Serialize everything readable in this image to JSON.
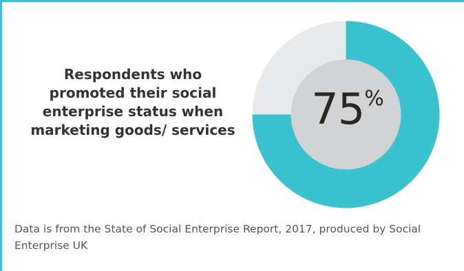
{
  "chart_data": {
    "type": "pie",
    "title": "Respondents who promoted their social enterprise status when marketing goods/ services",
    "value": 75,
    "remainder": 25,
    "unit": "%",
    "center_label_value": "75",
    "center_label_unit": "%",
    "colors": {
      "highlight": "#3bc2cf",
      "remainder": "#e8e9eb",
      "inner": "#d1d3d4"
    }
  },
  "footer": {
    "source": "Data is from the State of Social Enterprise Report, 2017, produced by Social Enterprise UK"
  },
  "colors": {
    "frame": "#3fbfcf"
  }
}
